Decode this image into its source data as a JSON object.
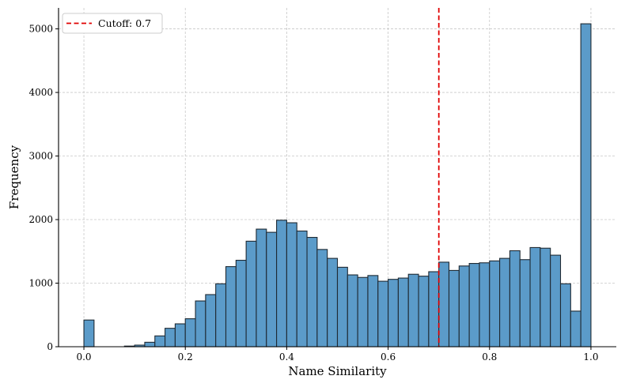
{
  "chart_data": {
    "type": "bar",
    "xlabel": "Name Similarity",
    "ylabel": "Frequency",
    "xlim": [
      -0.05,
      1.05
    ],
    "ylim": [
      0,
      5330
    ],
    "grid": true,
    "legend_position": "top-left",
    "x_ticks": [
      {
        "value": 0.0,
        "label": "0.0"
      },
      {
        "value": 0.2,
        "label": "0.2"
      },
      {
        "value": 0.4,
        "label": "0.4"
      },
      {
        "value": 0.6,
        "label": "0.6"
      },
      {
        "value": 0.8,
        "label": "0.8"
      },
      {
        "value": 1.0,
        "label": "1.0"
      }
    ],
    "y_ticks": [
      {
        "value": 0,
        "label": "0"
      },
      {
        "value": 1000,
        "label": "1000"
      },
      {
        "value": 2000,
        "label": "2000"
      },
      {
        "value": 3000,
        "label": "3000"
      },
      {
        "value": 4000,
        "label": "4000"
      },
      {
        "value": 5000,
        "label": "5000"
      }
    ],
    "bin_width": 0.02,
    "bin_starts": [
      0.0,
      0.02,
      0.04,
      0.06,
      0.08,
      0.1,
      0.12,
      0.14,
      0.16,
      0.18,
      0.2,
      0.22,
      0.24,
      0.26,
      0.28,
      0.3,
      0.32,
      0.34,
      0.36,
      0.38,
      0.4,
      0.42,
      0.44,
      0.46,
      0.48,
      0.5,
      0.52,
      0.54,
      0.56,
      0.58,
      0.6,
      0.62,
      0.64,
      0.66,
      0.68,
      0.7,
      0.72,
      0.74,
      0.76,
      0.78,
      0.8,
      0.82,
      0.84,
      0.86,
      0.88,
      0.9,
      0.92,
      0.94,
      0.96,
      0.98
    ],
    "values": [
      420,
      0,
      0,
      0,
      10,
      25,
      70,
      170,
      290,
      360,
      440,
      720,
      820,
      990,
      1260,
      1360,
      1660,
      1850,
      1800,
      1990,
      1950,
      1820,
      1720,
      1530,
      1390,
      1250,
      1130,
      1090,
      1120,
      1030,
      1060,
      1080,
      1140,
      1110,
      1180,
      1330,
      1200,
      1270,
      1310,
      1320,
      1350,
      1390,
      1510,
      1370,
      1560,
      1550,
      1440,
      990,
      560,
      5080
    ],
    "reference_line": {
      "x": 0.7,
      "label": "Cutoff: 0.7",
      "color": "#e00000"
    },
    "colors": {
      "bar_fill": "#5b9bc9",
      "bar_edge": "#1f2a33",
      "cutoff_line": "#e00000"
    }
  }
}
